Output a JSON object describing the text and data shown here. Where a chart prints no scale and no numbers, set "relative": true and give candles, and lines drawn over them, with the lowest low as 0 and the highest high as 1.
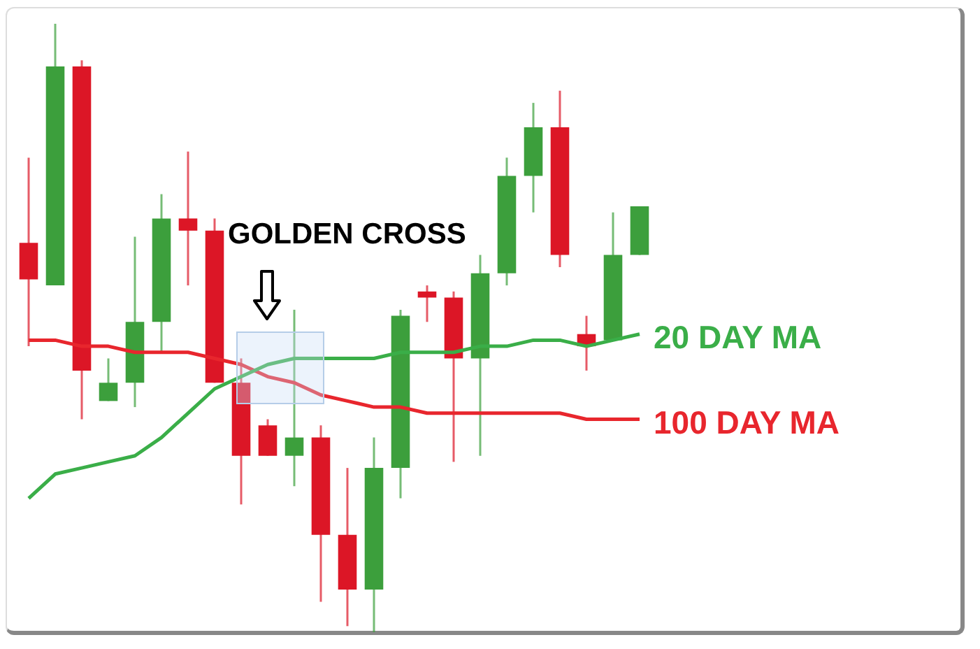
{
  "chart_data": {
    "type": "candlestick",
    "relative": true,
    "legend": false,
    "categories": [
      null,
      null,
      null,
      null,
      null,
      null,
      null,
      null,
      null,
      null,
      null,
      null,
      null,
      null,
      null,
      null,
      null,
      null,
      null,
      null,
      null,
      null,
      null,
      null
    ],
    "annotations": [
      "GOLDEN CROSS"
    ],
    "series": [
      {
        "colors": [
          "#dc1626",
          "#3c9f3c",
          "#dc1626",
          "#3c9f3c",
          "#3c9f3c",
          "#3c9f3c",
          "#dc1626",
          "#dc1626",
          "#dc1626",
          "#dc1626",
          "#3c9f3c",
          "#dc1626",
          "#dc1626",
          "#3c9f3c",
          "#3c9f3c",
          "#dc1626",
          "#dc1626",
          "#3c9f3c",
          "#3c9f3c",
          "#3c9f3c",
          "#dc1626",
          "#dc1626",
          "#3c9f3c",
          "#3c9f3c"
        ],
        "ohlc": [
          [
            0.64,
            0.78,
            0.47,
            0.58
          ],
          [
            0.57,
            1.0,
            0.57,
            0.93
          ],
          [
            0.93,
            0.94,
            0.35,
            0.43
          ],
          [
            0.38,
            0.45,
            0.38,
            0.41
          ],
          [
            0.41,
            0.65,
            0.37,
            0.51
          ],
          [
            0.51,
            0.72,
            0.46,
            0.68
          ],
          [
            0.68,
            0.79,
            0.57,
            0.66
          ],
          [
            0.66,
            0.68,
            0.41,
            0.41
          ],
          [
            0.41,
            0.45,
            0.21,
            0.29
          ],
          [
            0.34,
            0.35,
            0.29,
            0.29
          ],
          [
            0.29,
            0.53,
            0.24,
            0.32
          ],
          [
            0.32,
            0.34,
            0.05,
            0.16
          ],
          [
            0.16,
            0.27,
            0.01,
            0.07
          ],
          [
            0.07,
            0.32,
            0.0,
            0.27
          ],
          [
            0.27,
            0.53,
            0.22,
            0.52
          ],
          [
            0.56,
            0.57,
            0.51,
            0.55
          ],
          [
            0.55,
            0.56,
            0.28,
            0.45
          ],
          [
            0.45,
            0.62,
            0.29,
            0.59
          ],
          [
            0.59,
            0.78,
            0.57,
            0.75
          ],
          [
            0.75,
            0.87,
            0.69,
            0.83
          ],
          [
            0.83,
            0.89,
            0.6,
            0.62
          ],
          [
            0.49,
            0.52,
            0.43,
            0.47
          ],
          [
            0.48,
            0.69,
            0.48,
            0.62
          ],
          [
            0.62,
            0.7,
            0.62,
            0.7
          ]
        ]
      },
      {
        "type": "line",
        "name": "20 DAY MA",
        "color": "#3aae48",
        "values": [
          0.22,
          0.26,
          0.27,
          0.28,
          0.29,
          0.32,
          0.36,
          0.4,
          0.42,
          0.44,
          0.45,
          0.45,
          0.45,
          0.45,
          0.46,
          0.46,
          0.46,
          0.47,
          0.47,
          0.48,
          0.48,
          0.47,
          0.48,
          0.49
        ]
      },
      {
        "type": "line",
        "name": "100 DAY MA",
        "color": "#e8262d",
        "values": [
          0.48,
          0.48,
          0.47,
          0.47,
          0.46,
          0.46,
          0.46,
          0.45,
          0.44,
          0.42,
          0.41,
          0.39,
          0.38,
          0.37,
          0.37,
          0.36,
          0.36,
          0.36,
          0.36,
          0.36,
          0.36,
          0.35,
          0.35,
          0.35
        ]
      }
    ]
  }
}
